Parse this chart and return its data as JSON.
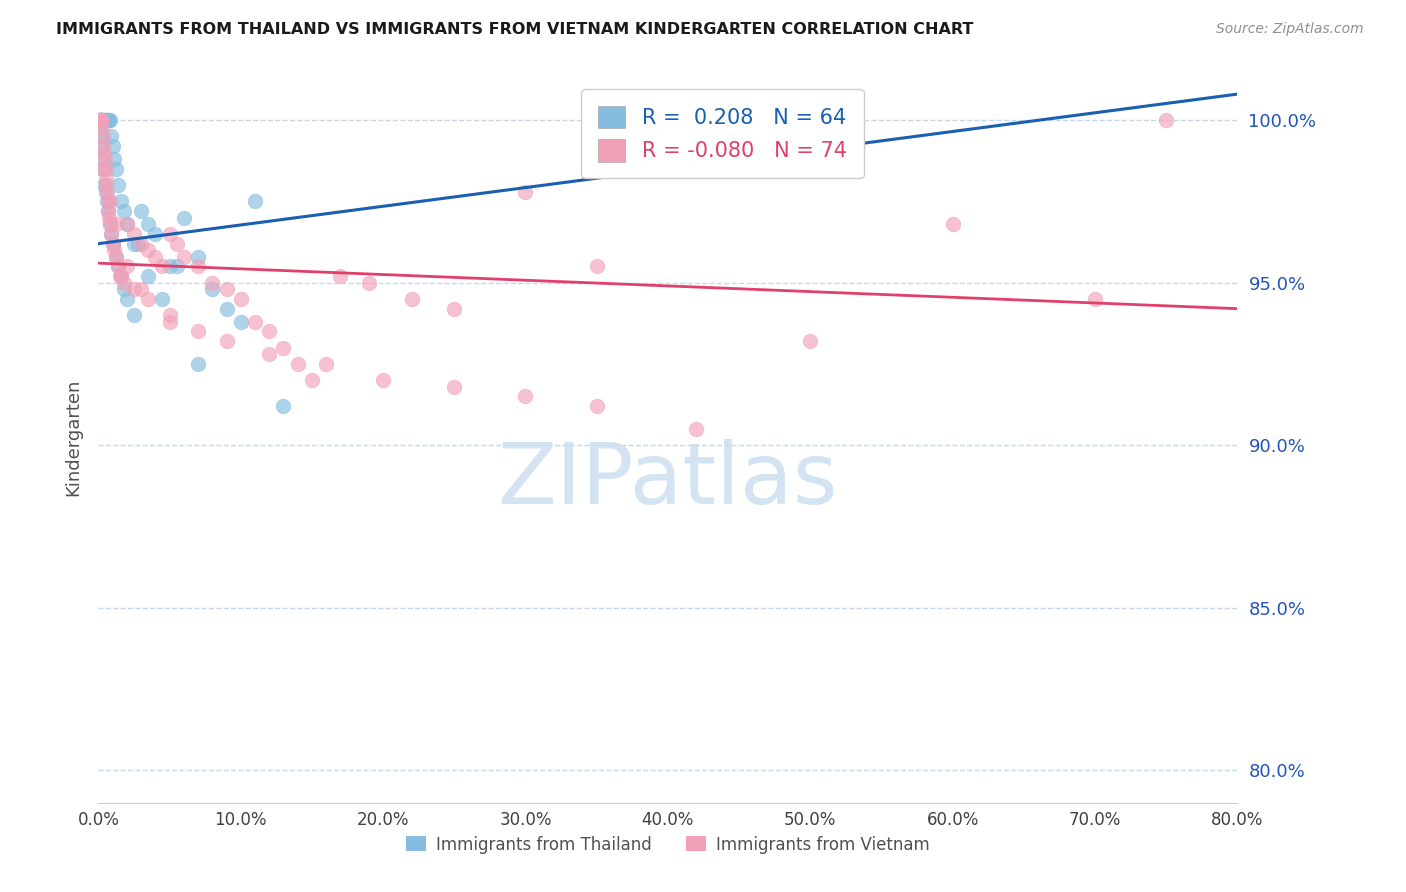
{
  "title": "IMMIGRANTS FROM THAILAND VS IMMIGRANTS FROM VIETNAM KINDERGARTEN CORRELATION CHART",
  "source": "Source: ZipAtlas.com",
  "ylabel": "Kindergarten",
  "x_tick_labels": [
    "0.0%",
    "10.0%",
    "20.0%",
    "30.0%",
    "40.0%",
    "50.0%",
    "60.0%",
    "70.0%",
    "80.0%"
  ],
  "x_tick_values": [
    0,
    10,
    20,
    30,
    40,
    50,
    60,
    70,
    80
  ],
  "y_tick_labels": [
    "80.0%",
    "85.0%",
    "90.0%",
    "95.0%",
    "100.0%"
  ],
  "y_tick_values": [
    80,
    85,
    90,
    95,
    100
  ],
  "xlim": [
    0,
    80
  ],
  "ylim": [
    79.0,
    101.5
  ],
  "blue_color": "#85bde0",
  "pink_color": "#f2a0b8",
  "blue_line_color": "#1a5fb0",
  "pink_line_color": "#e0406a",
  "grid_color": "#c5d8ee",
  "title_color": "#1a1a1a",
  "right_tick_color": "#2255bb",
  "source_color": "#909090",
  "blue_line_x0": 0,
  "blue_line_y0": 96.2,
  "blue_line_x1": 80,
  "blue_line_y1": 100.8,
  "pink_line_x0": 0,
  "pink_line_y0": 95.6,
  "pink_line_x1": 80,
  "pink_line_y1": 94.2,
  "blue_x": [
    0.05,
    0.08,
    0.1,
    0.12,
    0.15,
    0.18,
    0.2,
    0.22,
    0.25,
    0.28,
    0.3,
    0.35,
    0.4,
    0.45,
    0.5,
    0.55,
    0.6,
    0.65,
    0.7,
    0.75,
    0.8,
    0.9,
    1.0,
    1.1,
    1.2,
    1.4,
    1.6,
    1.8,
    2.0,
    2.5,
    0.1,
    0.15,
    0.2,
    0.25,
    0.3,
    0.4,
    0.5,
    0.6,
    0.7,
    0.8,
    0.9,
    1.0,
    1.2,
    1.4,
    1.6,
    1.8,
    2.0,
    2.5,
    3.0,
    3.5,
    4.0,
    5.0,
    6.0,
    7.0,
    8.0,
    9.0,
    10.0,
    11.0,
    13.0,
    2.8,
    3.5,
    4.5,
    5.5,
    7.0
  ],
  "blue_y": [
    100.0,
    100.0,
    100.0,
    100.0,
    100.0,
    100.0,
    100.0,
    100.0,
    100.0,
    100.0,
    100.0,
    100.0,
    100.0,
    100.0,
    100.0,
    100.0,
    100.0,
    100.0,
    100.0,
    100.0,
    100.0,
    99.5,
    99.2,
    98.8,
    98.5,
    98.0,
    97.5,
    97.2,
    96.8,
    96.2,
    99.8,
    99.5,
    99.2,
    98.8,
    98.5,
    98.0,
    97.8,
    97.5,
    97.2,
    96.8,
    96.5,
    96.2,
    95.8,
    95.5,
    95.2,
    94.8,
    94.5,
    94.0,
    97.2,
    96.8,
    96.5,
    95.5,
    97.0,
    95.8,
    94.8,
    94.2,
    93.8,
    97.5,
    91.2,
    96.2,
    95.2,
    94.5,
    95.5,
    92.5
  ],
  "pink_x": [
    0.05,
    0.08,
    0.1,
    0.12,
    0.15,
    0.18,
    0.2,
    0.25,
    0.3,
    0.35,
    0.4,
    0.45,
    0.5,
    0.55,
    0.6,
    0.65,
    0.7,
    0.75,
    0.8,
    0.9,
    1.0,
    1.1,
    1.2,
    1.4,
    1.6,
    1.8,
    2.0,
    2.5,
    3.0,
    3.5,
    4.0,
    4.5,
    5.0,
    5.5,
    6.0,
    7.0,
    8.0,
    9.0,
    10.0,
    11.0,
    12.0,
    13.0,
    14.0,
    15.0,
    17.0,
    19.0,
    22.0,
    25.0,
    30.0,
    35.0,
    1.5,
    2.5,
    3.5,
    5.0,
    7.0,
    9.0,
    12.0,
    16.0,
    20.0,
    25.0,
    30.0,
    35.0,
    42.0,
    50.0,
    60.0,
    70.0,
    0.3,
    0.5,
    0.8,
    1.2,
    2.0,
    3.0,
    5.0,
    75.0
  ],
  "pink_y": [
    100.0,
    100.0,
    100.0,
    100.0,
    100.0,
    100.0,
    100.0,
    99.8,
    99.5,
    99.2,
    99.0,
    98.8,
    98.5,
    98.2,
    97.8,
    97.5,
    97.2,
    97.0,
    96.8,
    96.5,
    96.2,
    96.0,
    95.8,
    95.5,
    95.2,
    95.0,
    96.8,
    96.5,
    96.2,
    96.0,
    95.8,
    95.5,
    96.5,
    96.2,
    95.8,
    95.5,
    95.0,
    94.8,
    94.5,
    93.8,
    93.5,
    93.0,
    92.5,
    92.0,
    95.2,
    95.0,
    94.5,
    94.2,
    97.8,
    95.5,
    95.2,
    94.8,
    94.5,
    94.0,
    93.5,
    93.2,
    92.8,
    92.5,
    92.0,
    91.8,
    91.5,
    91.2,
    90.5,
    93.2,
    96.8,
    94.5,
    98.5,
    98.0,
    97.5,
    96.8,
    95.5,
    94.8,
    93.8,
    100.0
  ]
}
